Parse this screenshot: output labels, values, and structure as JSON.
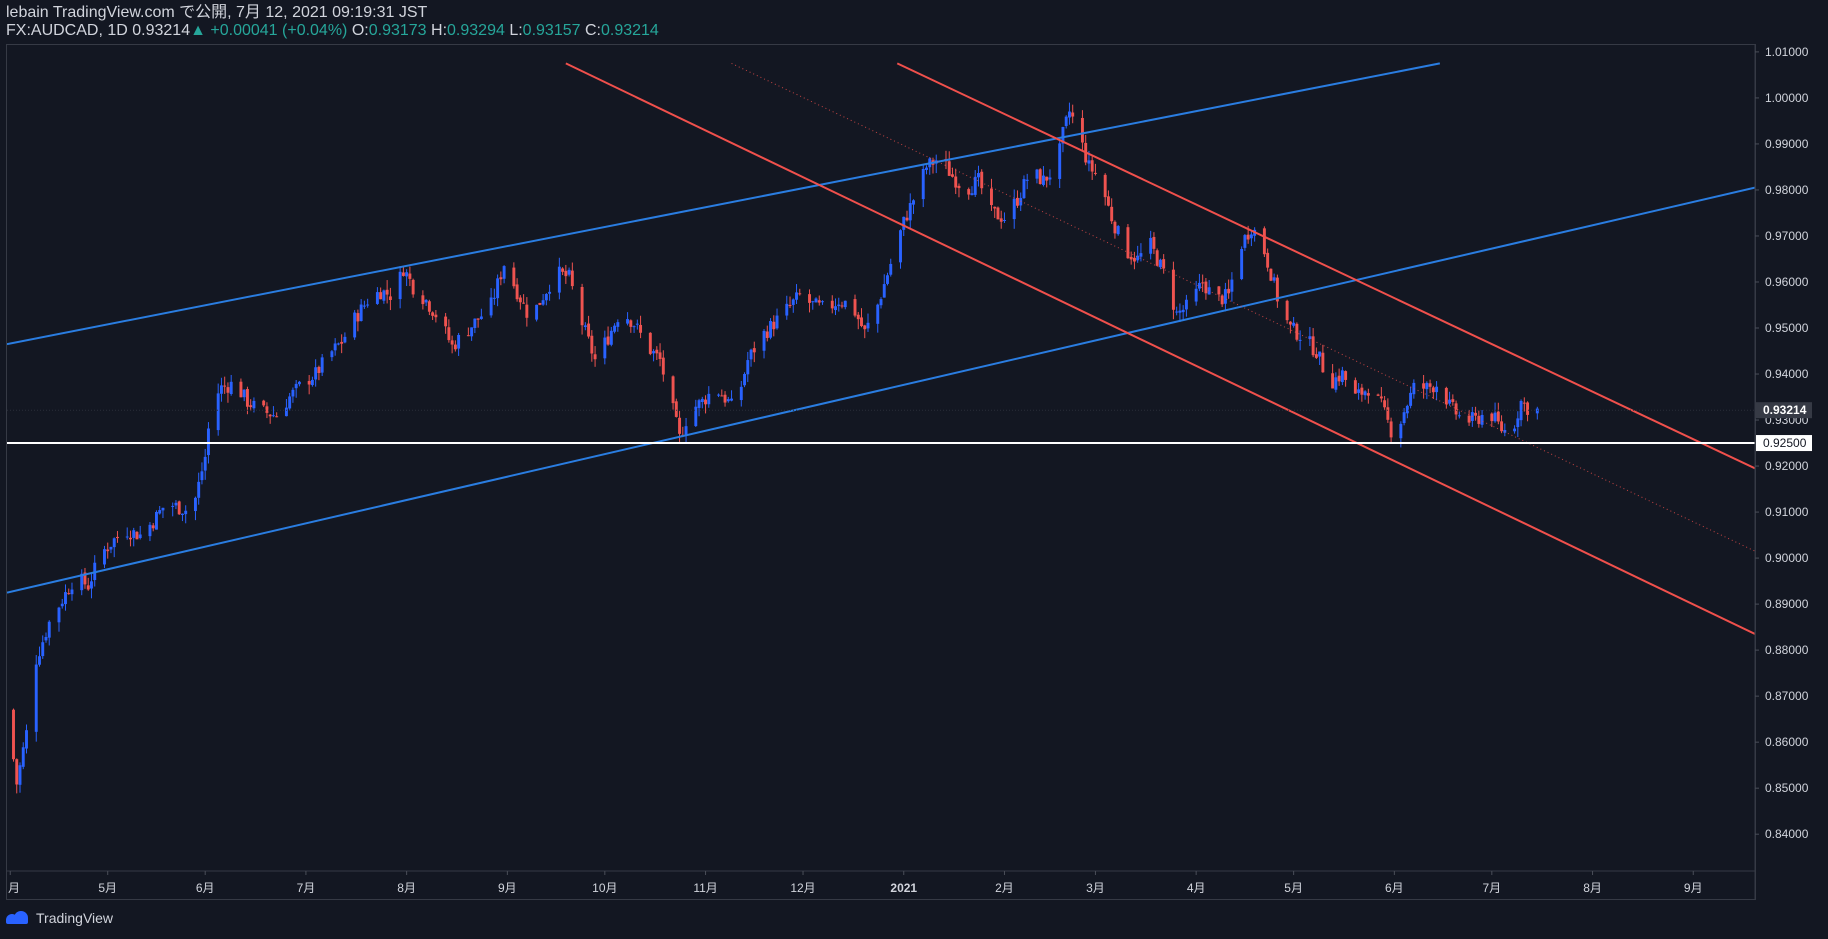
{
  "header": {
    "line1": "lebain TradingView.com で公開, 7月 12, 2021 09:19:31 JST",
    "symbol": "FX:AUDCAD, 1D",
    "price": "0.93214",
    "arrow": "▲",
    "change": "+0.00041 (+0.04%)",
    "o_label": "O:",
    "o": "0.93173",
    "h_label": "H:",
    "h": "0.93294",
    "l_label": "L:",
    "l": "0.93157",
    "c_label": "C:",
    "c": "0.93214"
  },
  "footer": {
    "brand": "TradingView",
    "logo_icon": "tradingview-cloud-icon"
  },
  "colors": {
    "bg": "#131722",
    "up": "#2962ff",
    "down": "#ef5350",
    "channel_blue": "#2a7de1",
    "channel_red": "#f0504c",
    "text": "#d1d4dc",
    "grid": "#1e222d"
  },
  "chart_data": {
    "type": "candlestick",
    "title": "FX:AUDCAD, 1D",
    "ylim": [
      0.832,
      1.0115
    ],
    "y_ticks": [
      "1.01000",
      "1.00000",
      "0.99000",
      "0.98000",
      "0.97000",
      "0.96000",
      "0.95000",
      "0.94000",
      "0.93000",
      "0.92000",
      "0.91000",
      "0.90000",
      "0.89000",
      "0.88000",
      "0.87000",
      "0.86000",
      "0.85000",
      "0.84000"
    ],
    "y_tick_values": [
      1.01,
      1.0,
      0.99,
      0.98,
      0.97,
      0.96,
      0.95,
      0.94,
      0.93,
      0.92,
      0.91,
      0.9,
      0.89,
      0.88,
      0.87,
      0.86,
      0.85,
      0.84
    ],
    "x_ticks": [
      "月",
      "5月",
      "6月",
      "7月",
      "8月",
      "9月",
      "10月",
      "11月",
      "12月",
      "2021",
      "2月",
      "3月",
      "4月",
      "5月",
      "6月",
      "7月",
      "8月",
      "9月"
    ],
    "x_tick_days": [
      -22,
      8,
      38,
      69,
      100,
      131,
      161,
      192,
      222,
      253,
      284,
      312,
      343,
      373,
      404,
      434,
      465,
      496
    ],
    "x_range_days": [
      -23,
      515
    ],
    "last_price_label": "0.93214",
    "last_price": 0.93214,
    "horizontal_line": {
      "value": 0.925,
      "label": "0.92500",
      "color": "#ffffff"
    },
    "trend_lines": [
      {
        "name": "blue-channel-upper",
        "color": "#2a7de1",
        "p1": [
          -23,
          0.9465
        ],
        "p2": [
          418,
          1.0075
        ]
      },
      {
        "name": "blue-channel-lower",
        "color": "#2a7de1",
        "p1": [
          -23,
          0.8925
        ],
        "p2": [
          515,
          0.9805
        ]
      },
      {
        "name": "red-channel-upper",
        "color": "#f0504c",
        "p1": [
          251,
          1.0075
        ],
        "p2": [
          515,
          0.9195
        ]
      },
      {
        "name": "red-channel-lower",
        "color": "#f0504c",
        "p1": [
          149,
          1.0075
        ],
        "p2": [
          515,
          0.8835
        ]
      },
      {
        "name": "red-channel-mid",
        "color": "#f0504c",
        "dotted": true,
        "p1": [
          200,
          1.0075
        ],
        "p2": [
          515,
          0.9015
        ]
      }
    ],
    "price_path": [
      [
        -23,
        0.867
      ],
      [
        -20,
        0.851
      ],
      [
        -17,
        0.862
      ],
      [
        -14,
        0.878
      ],
      [
        -10,
        0.886
      ],
      [
        -6,
        0.891
      ],
      [
        -2,
        0.896
      ],
      [
        2,
        0.894
      ],
      [
        6,
        0.901
      ],
      [
        10,
        0.904
      ],
      [
        14,
        0.906
      ],
      [
        18,
        0.905
      ],
      [
        22,
        0.908
      ],
      [
        26,
        0.912
      ],
      [
        30,
        0.911
      ],
      [
        34,
        0.91
      ],
      [
        38,
        0.922
      ],
      [
        40,
        0.934
      ],
      [
        43,
        0.937
      ],
      [
        47,
        0.938
      ],
      [
        51,
        0.934
      ],
      [
        55,
        0.932
      ],
      [
        60,
        0.931
      ],
      [
        64,
        0.935
      ],
      [
        68,
        0.938
      ],
      [
        72,
        0.94
      ],
      [
        76,
        0.944
      ],
      [
        80,
        0.947
      ],
      [
        84,
        0.952
      ],
      [
        88,
        0.956
      ],
      [
        92,
        0.958
      ],
      [
        96,
        0.957
      ],
      [
        99,
        0.963
      ],
      [
        102,
        0.959
      ],
      [
        106,
        0.956
      ],
      [
        110,
        0.952
      ],
      [
        114,
        0.946
      ],
      [
        118,
        0.949
      ],
      [
        122,
        0.952
      ],
      [
        126,
        0.955
      ],
      [
        130,
        0.964
      ],
      [
        134,
        0.958
      ],
      [
        138,
        0.952
      ],
      [
        142,
        0.957
      ],
      [
        146,
        0.962
      ],
      [
        150,
        0.961
      ],
      [
        154,
        0.951
      ],
      [
        158,
        0.943
      ],
      [
        162,
        0.948
      ],
      [
        166,
        0.954
      ],
      [
        170,
        0.951
      ],
      [
        174,
        0.946
      ],
      [
        178,
        0.943
      ],
      [
        182,
        0.932
      ],
      [
        184,
        0.926
      ],
      [
        187,
        0.932
      ],
      [
        191,
        0.934
      ],
      [
        195,
        0.937
      ],
      [
        199,
        0.934
      ],
      [
        201,
        0.932
      ],
      [
        205,
        0.943
      ],
      [
        209,
        0.948
      ],
      [
        213,
        0.951
      ],
      [
        217,
        0.954
      ],
      [
        221,
        0.957
      ],
      [
        225,
        0.955
      ],
      [
        229,
        0.954
      ],
      [
        233,
        0.956
      ],
      [
        237,
        0.955
      ],
      [
        241,
        0.949
      ],
      [
        245,
        0.955
      ],
      [
        249,
        0.964
      ],
      [
        253,
        0.973
      ],
      [
        256,
        0.978
      ],
      [
        260,
        0.985
      ],
      [
        264,
        0.987
      ],
      [
        268,
        0.983
      ],
      [
        272,
        0.98
      ],
      [
        276,
        0.982
      ],
      [
        280,
        0.975
      ],
      [
        284,
        0.974
      ],
      [
        288,
        0.978
      ],
      [
        292,
        0.984
      ],
      [
        296,
        0.982
      ],
      [
        300,
        0.985
      ],
      [
        302,
        0.992
      ],
      [
        304,
        0.997
      ],
      [
        306,
        0.994
      ],
      [
        310,
        0.985
      ],
      [
        313,
        0.983
      ],
      [
        317,
        0.974
      ],
      [
        321,
        0.967
      ],
      [
        325,
        0.965
      ],
      [
        329,
        0.968
      ],
      [
        333,
        0.962
      ],
      [
        337,
        0.953
      ],
      [
        341,
        0.955
      ],
      [
        345,
        0.96
      ],
      [
        349,
        0.956
      ],
      [
        353,
        0.957
      ],
      [
        356,
        0.967
      ],
      [
        360,
        0.972
      ],
      [
        363,
        0.969
      ],
      [
        366,
        0.962
      ],
      [
        369,
        0.954
      ],
      [
        372,
        0.95
      ],
      [
        376,
        0.948
      ],
      [
        380,
        0.945
      ],
      [
        384,
        0.938
      ],
      [
        388,
        0.94
      ],
      [
        392,
        0.935
      ],
      [
        396,
        0.937
      ],
      [
        400,
        0.933
      ],
      [
        404,
        0.926
      ],
      [
        407,
        0.932
      ],
      [
        410,
        0.937
      ],
      [
        414,
        0.937
      ],
      [
        418,
        0.938
      ],
      [
        421,
        0.933
      ],
      [
        425,
        0.93
      ],
      [
        429,
        0.93
      ],
      [
        433,
        0.932
      ],
      [
        437,
        0.928
      ],
      [
        440,
        0.927
      ],
      [
        443,
        0.934
      ],
      [
        446,
        0.932
      ],
      [
        448,
        0.9321
      ]
    ]
  }
}
